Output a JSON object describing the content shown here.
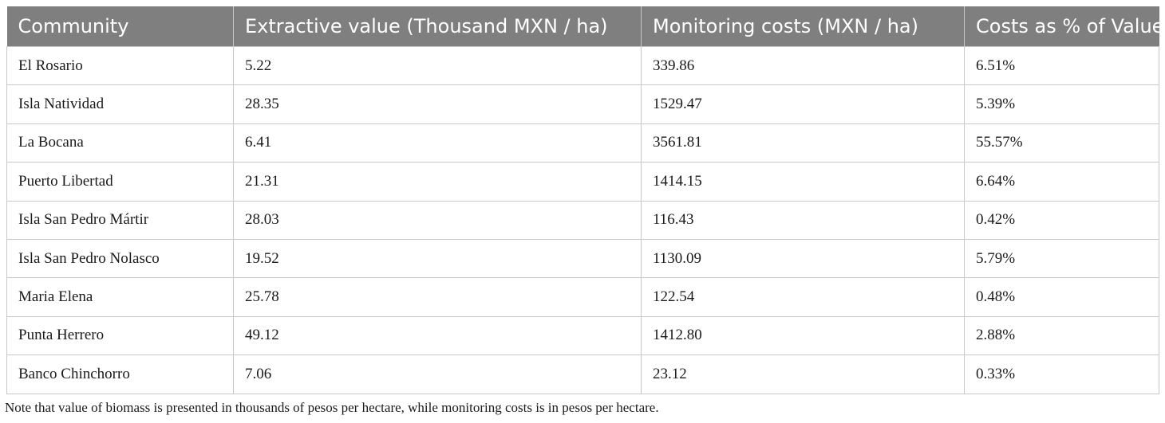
{
  "table": {
    "headers": [
      "Community",
      "Extractive value (Thousand MXN / ha)",
      "Monitoring costs (MXN / ha)",
      "Costs as % of Value"
    ],
    "rows": [
      [
        "El Rosario",
        "5.22",
        "339.86",
        "6.51%"
      ],
      [
        "Isla Natividad",
        "28.35",
        "1529.47",
        "5.39%"
      ],
      [
        "La Bocana",
        "6.41",
        "3561.81",
        "55.57%"
      ],
      [
        "Puerto Libertad",
        "21.31",
        "1414.15",
        "6.64%"
      ],
      [
        "Isla San Pedro Mártir",
        "28.03",
        "116.43",
        "0.42%"
      ],
      [
        "Isla San Pedro Nolasco",
        "19.52",
        "1130.09",
        "5.79%"
      ],
      [
        "Maria Elena",
        "25.78",
        "122.54",
        "0.48%"
      ],
      [
        "Punta Herrero",
        "49.12",
        "1412.80",
        "2.88%"
      ],
      [
        "Banco Chinchorro",
        "7.06",
        "23.12",
        "0.33%"
      ]
    ]
  },
  "note": "Note that value of biomass is presented in thousands of pesos per hectare, while monitoring costs is in pesos per hectare."
}
